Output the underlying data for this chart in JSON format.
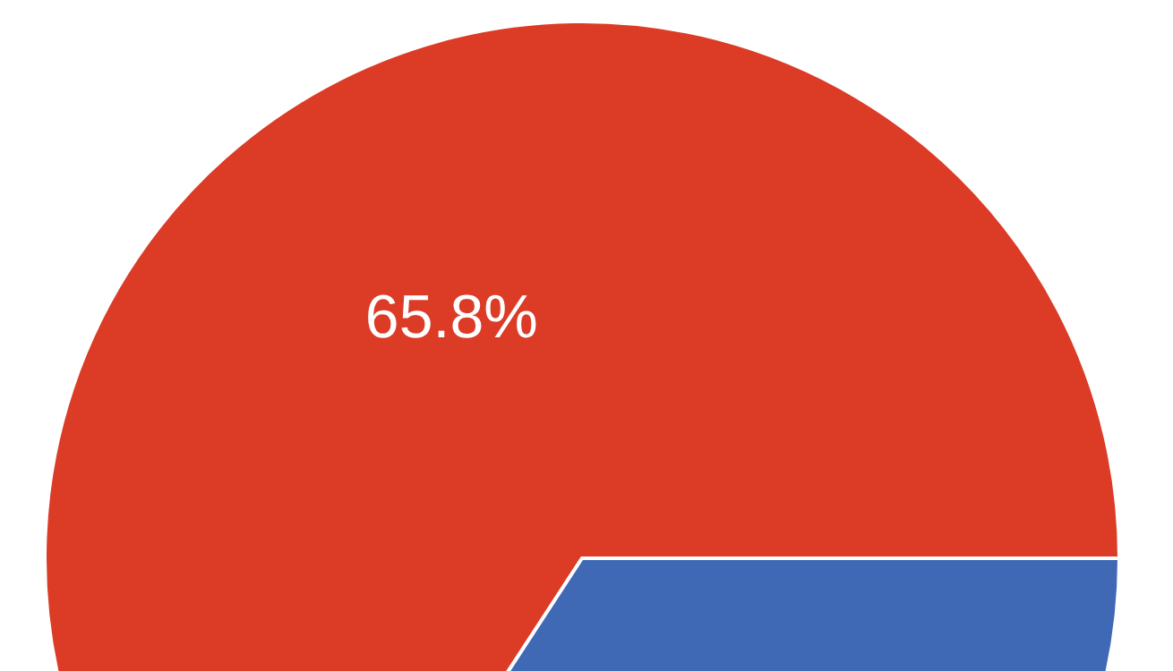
{
  "chart_data": {
    "type": "pie",
    "categories": [
      null,
      null
    ],
    "values": [
      65.8,
      34.2
    ],
    "colors": [
      "#dc3b26",
      "#3f68b5"
    ],
    "value_labels": [
      "65.8%",
      null
    ]
  }
}
